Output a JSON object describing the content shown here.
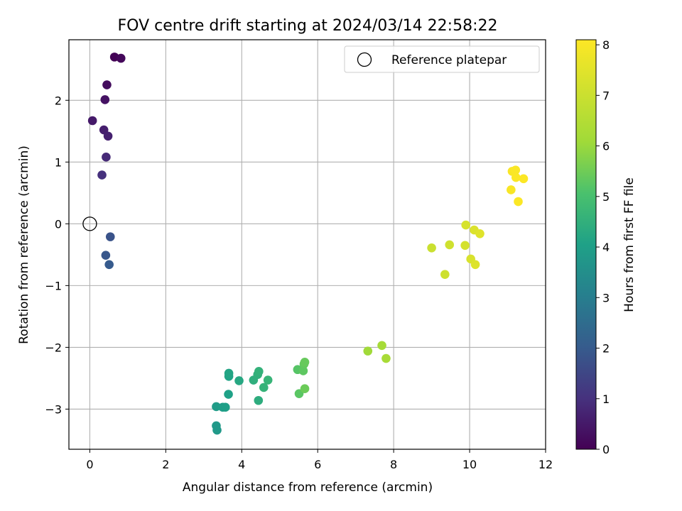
{
  "chart_data": {
    "type": "scatter",
    "title": "FOV centre drift starting at 2024/03/14 22:58:22",
    "xlabel": "Angular distance from reference (arcmin)",
    "ylabel": "Rotation from reference (arcmin)",
    "colorbar_label": "Hours from first FF file",
    "xlim": [
      -0.55,
      12.0
    ],
    "ylim": [
      -3.65,
      2.98
    ],
    "xticks": [
      0,
      2,
      4,
      6,
      8,
      10,
      12
    ],
    "yticks": [
      -3,
      -2,
      -1,
      0,
      1,
      2
    ],
    "colorbar_range": [
      0,
      8.1
    ],
    "colorbar_ticks": [
      0,
      1,
      2,
      3,
      4,
      5,
      6,
      7,
      8
    ],
    "colormap": "viridis",
    "grid": true,
    "legend": {
      "placement": "top-right",
      "entries": [
        "Reference platepar"
      ]
    },
    "reference_point": {
      "x": 0,
      "y": 0
    },
    "points": [
      {
        "x": 0.65,
        "y": 2.7,
        "c": 0.05
      },
      {
        "x": 0.82,
        "y": 2.68,
        "c": 0.15
      },
      {
        "x": 0.45,
        "y": 2.25,
        "c": 0.25
      },
      {
        "x": 0.4,
        "y": 2.01,
        "c": 0.35
      },
      {
        "x": 0.07,
        "y": 1.67,
        "c": 0.5
      },
      {
        "x": 0.37,
        "y": 1.52,
        "c": 0.6
      },
      {
        "x": 0.48,
        "y": 1.42,
        "c": 0.65
      },
      {
        "x": 0.43,
        "y": 1.08,
        "c": 0.85
      },
      {
        "x": 0.32,
        "y": 0.79,
        "c": 1.0
      },
      {
        "x": 0.54,
        "y": -0.21,
        "c": 1.8
      },
      {
        "x": 0.42,
        "y": -0.51,
        "c": 1.9
      },
      {
        "x": 0.51,
        "y": -0.66,
        "c": 2.0
      },
      {
        "x": 3.33,
        "y": -3.27,
        "c": 3.8
      },
      {
        "x": 3.35,
        "y": -3.34,
        "c": 3.82
      },
      {
        "x": 3.33,
        "y": -2.96,
        "c": 3.9
      },
      {
        "x": 3.5,
        "y": -2.97,
        "c": 3.95
      },
      {
        "x": 3.57,
        "y": -2.97,
        "c": 4.0
      },
      {
        "x": 3.65,
        "y": -2.76,
        "c": 4.05
      },
      {
        "x": 3.66,
        "y": -2.47,
        "c": 4.1
      },
      {
        "x": 3.66,
        "y": -2.42,
        "c": 4.15
      },
      {
        "x": 3.93,
        "y": -2.54,
        "c": 4.25
      },
      {
        "x": 4.44,
        "y": -2.86,
        "c": 4.4
      },
      {
        "x": 4.31,
        "y": -2.53,
        "c": 4.45
      },
      {
        "x": 4.42,
        "y": -2.44,
        "c": 4.5
      },
      {
        "x": 4.45,
        "y": -2.39,
        "c": 4.55
      },
      {
        "x": 4.58,
        "y": -2.65,
        "c": 4.6
      },
      {
        "x": 4.69,
        "y": -2.53,
        "c": 4.65
      },
      {
        "x": 5.47,
        "y": -2.36,
        "c": 5.2
      },
      {
        "x": 5.51,
        "y": -2.75,
        "c": 5.25
      },
      {
        "x": 5.62,
        "y": -2.38,
        "c": 5.3
      },
      {
        "x": 5.64,
        "y": -2.27,
        "c": 5.35
      },
      {
        "x": 5.66,
        "y": -2.24,
        "c": 5.4
      },
      {
        "x": 5.66,
        "y": -2.67,
        "c": 5.45
      },
      {
        "x": 7.32,
        "y": -2.06,
        "c": 6.1
      },
      {
        "x": 7.69,
        "y": -1.97,
        "c": 6.2
      },
      {
        "x": 7.8,
        "y": -2.18,
        "c": 6.25
      },
      {
        "x": 9.0,
        "y": -0.39,
        "c": 7.0
      },
      {
        "x": 9.35,
        "y": -0.82,
        "c": 7.05
      },
      {
        "x": 9.47,
        "y": -0.34,
        "c": 7.1
      },
      {
        "x": 9.88,
        "y": -0.35,
        "c": 7.2
      },
      {
        "x": 9.9,
        "y": -0.02,
        "c": 7.25
      },
      {
        "x": 10.03,
        "y": -0.57,
        "c": 7.3
      },
      {
        "x": 10.12,
        "y": -0.1,
        "c": 7.35
      },
      {
        "x": 10.15,
        "y": -0.66,
        "c": 7.4
      },
      {
        "x": 10.27,
        "y": -0.16,
        "c": 7.45
      },
      {
        "x": 11.09,
        "y": 0.55,
        "c": 8.0
      },
      {
        "x": 11.12,
        "y": 0.85,
        "c": 8.02
      },
      {
        "x": 11.21,
        "y": 0.87,
        "c": 8.04
      },
      {
        "x": 11.22,
        "y": 0.75,
        "c": 8.05
      },
      {
        "x": 11.28,
        "y": 0.36,
        "c": 8.06
      },
      {
        "x": 11.42,
        "y": 0.73,
        "c": 8.08
      }
    ]
  }
}
